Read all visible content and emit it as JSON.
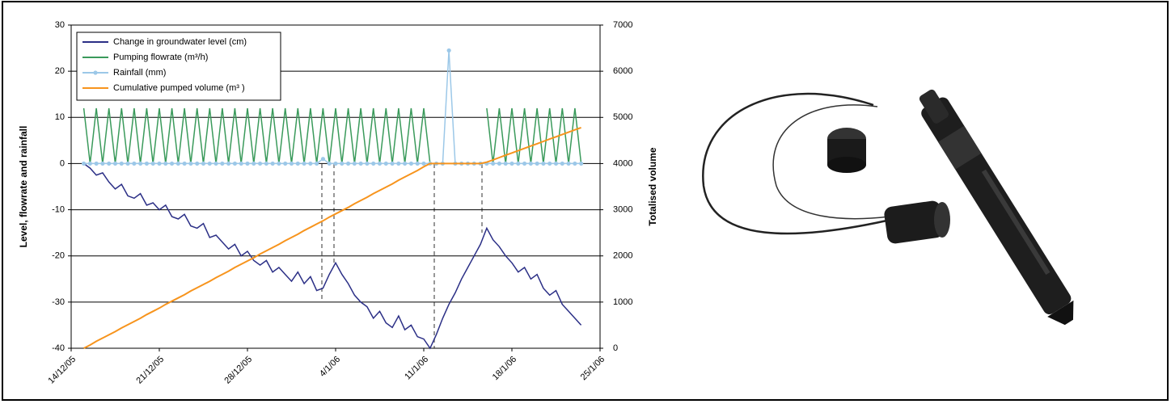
{
  "chart_data": {
    "type": "line",
    "x": [
      1.0,
      1.5,
      2.0,
      2.5,
      3.0,
      3.5,
      4.0,
      4.5,
      5.0,
      5.5,
      6.0,
      6.5,
      7.0,
      7.5,
      8.0,
      8.5,
      9.0,
      9.5,
      10.0,
      10.5,
      11.0,
      11.5,
      12.0,
      12.5,
      13.0,
      13.5,
      14.0,
      14.5,
      15.0,
      15.5,
      16.0,
      16.5,
      17.0,
      17.5,
      18.0,
      18.5,
      19.0,
      19.5,
      20.0,
      20.5,
      21.0,
      21.5,
      22.0,
      22.5,
      23.0,
      23.5,
      24.0,
      24.5,
      25.0,
      25.5,
      26.0,
      26.5,
      27.0,
      27.5,
      28.0,
      28.5,
      29.0,
      29.5,
      30.0,
      30.5,
      31.0,
      31.5,
      32.0,
      32.5,
      33.0,
      33.5,
      34.0,
      34.5,
      35.0,
      35.5,
      36.0,
      36.5,
      37.0,
      37.5,
      38.0,
      38.5,
      39.0,
      39.5,
      40.0,
      40.5
    ],
    "series": [
      {
        "name": "Change in groundwater level (cm)",
        "color": "#2b2f86",
        "values": [
          0,
          -1,
          -2.5,
          -2,
          -4,
          -5.5,
          -4.5,
          -7,
          -7.5,
          -6.5,
          -9,
          -8.5,
          -10,
          -9,
          -11.5,
          -12,
          -11,
          -13.5,
          -14,
          -13,
          -16,
          -15.5,
          -17,
          -18.5,
          -17.5,
          -20,
          -19,
          -21,
          -22,
          -21,
          -23.5,
          -22.5,
          -24,
          -25.5,
          -23.5,
          -26,
          -24.5,
          -27.5,
          -27,
          -24,
          -21.5,
          -24,
          -26,
          -28.5,
          -30,
          -31,
          -33.5,
          -32,
          -34.5,
          -35.5,
          -33,
          -36,
          -35,
          -37.5,
          -38,
          -40,
          -37,
          -33.5,
          -30.5,
          -28,
          -25,
          -22.5,
          -20,
          -17.5,
          -14,
          -16.5,
          -18,
          -20,
          -21.5,
          -23.5,
          -22.5,
          -25,
          -24,
          -27,
          -28.5,
          -27.5,
          -30.5,
          -32,
          -33.5,
          -35
        ]
      },
      {
        "name": "Pumping flowrate (m³/h)",
        "color": "#3a9a5b",
        "values": [
          12,
          0,
          12,
          0,
          12,
          0,
          12,
          0,
          12,
          0,
          12,
          0,
          12,
          0,
          12,
          0,
          12,
          0,
          12,
          0,
          12,
          0,
          12,
          0,
          12,
          0,
          12,
          0,
          12,
          0,
          12,
          0,
          12,
          0,
          12,
          0,
          12,
          0,
          12,
          0,
          12,
          0,
          12,
          0,
          12,
          0,
          12,
          0,
          12,
          0,
          12,
          0,
          12,
          0,
          12,
          0,
          null,
          null,
          null,
          null,
          null,
          null,
          null,
          null,
          12,
          0,
          12,
          0,
          12,
          0,
          12,
          0,
          12,
          0,
          12,
          0,
          12,
          0,
          12,
          0
        ]
      },
      {
        "name": "Rainfall (mm)",
        "color": "#9cc8e8",
        "marker": true,
        "values": [
          0,
          0,
          0,
          0,
          0,
          0,
          0,
          0,
          0,
          0,
          0,
          0,
          0,
          0,
          0,
          0,
          0,
          0,
          0,
          0,
          0,
          0,
          0,
          0,
          0,
          0,
          0,
          0,
          0,
          0,
          0,
          0,
          0,
          0,
          0,
          0,
          0,
          0,
          1,
          0,
          0,
          0,
          0,
          0,
          0,
          0,
          0,
          0,
          0,
          0,
          0,
          0,
          0,
          0,
          0,
          0,
          0,
          0,
          24.5,
          0,
          0,
          0,
          0,
          0,
          0,
          0,
          0,
          0,
          0,
          0,
          0,
          0,
          0,
          0,
          0,
          0,
          0,
          0,
          0,
          0
        ]
      },
      {
        "name": "Cumulative pumped volume (m³ )",
        "color": "#f7941d",
        "axis": "y2",
        "values": [
          0,
          70,
          150,
          220,
          290,
          360,
          440,
          510,
          580,
          650,
          730,
          800,
          870,
          950,
          1020,
          1090,
          1160,
          1240,
          1310,
          1380,
          1450,
          1530,
          1600,
          1670,
          1750,
          1820,
          1890,
          1960,
          2040,
          2110,
          2180,
          2250,
          2330,
          2400,
          2470,
          2550,
          2620,
          2690,
          2760,
          2840,
          2910,
          2980,
          3050,
          3130,
          3200,
          3270,
          3350,
          3420,
          3490,
          3560,
          3640,
          3710,
          3780,
          3850,
          3930,
          4000,
          4000,
          4000,
          4000,
          4000,
          4000,
          4000,
          4000,
          4000,
          4030,
          4080,
          4130,
          4180,
          4230,
          4280,
          4330,
          4380,
          4430,
          4480,
          4530,
          4580,
          4630,
          4680,
          4730,
          4780
        ]
      }
    ],
    "xlim": [
      0,
      42
    ],
    "xticks": [
      {
        "value": 0,
        "label": "14/12/05"
      },
      {
        "value": 7,
        "label": "21/12/05"
      },
      {
        "value": 14,
        "label": "28/12/05"
      },
      {
        "value": 21,
        "label": "4/1/06"
      },
      {
        "value": 28,
        "label": "11/1/06"
      },
      {
        "value": 35,
        "label": "18/1/06"
      },
      {
        "value": 42,
        "label": "25/1/06"
      }
    ],
    "ylim": [
      -40,
      30
    ],
    "yticks": [
      -40,
      -30,
      -20,
      -10,
      0,
      10,
      20,
      30
    ],
    "y2lim": [
      0,
      7000
    ],
    "y2ticks": [
      0,
      1000,
      2000,
      3000,
      4000,
      5000,
      6000,
      7000
    ],
    "ylabel": "Level, flowrate and rainfall",
    "y2label": "Totalised volume",
    "grid": true,
    "legend": "upper left"
  }
}
